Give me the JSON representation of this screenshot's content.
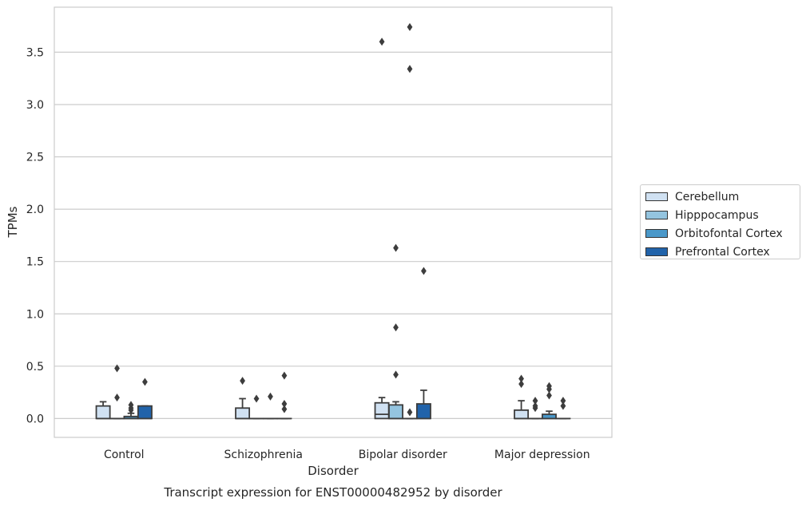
{
  "chart_data": {
    "type": "box",
    "caption": "Transcript expression for ENST00000482952 by disorder",
    "xlabel": "Disorder",
    "ylabel": "TPMs",
    "ylim": [
      -0.18,
      3.93
    ],
    "yticks": [
      0.0,
      0.5,
      1.0,
      1.5,
      2.0,
      2.5,
      3.0,
      3.5
    ],
    "ytick_labels": [
      "0.0",
      "0.5",
      "1.0",
      "1.5",
      "2.0",
      "2.5",
      "3.0",
      "3.5"
    ],
    "grid": "horizontal",
    "legend_position": "right",
    "categories": [
      "Control",
      "Schizophrenia",
      "Bipolar disorder",
      "Major depression"
    ],
    "series": [
      {
        "name": "Cerebellum",
        "color": "#d0e1f2",
        "boxes": [
          {
            "q1": 0.0,
            "median": 0.0,
            "q3": 0.12,
            "whisker_low": 0.0,
            "whisker_high": 0.16,
            "outliers": []
          },
          {
            "q1": 0.0,
            "median": 0.0,
            "q3": 0.1,
            "whisker_low": 0.0,
            "whisker_high": 0.19,
            "outliers": [
              0.36
            ]
          },
          {
            "q1": 0.0,
            "median": 0.04,
            "q3": 0.15,
            "whisker_low": 0.0,
            "whisker_high": 0.2,
            "outliers": [
              3.6
            ]
          },
          {
            "q1": 0.0,
            "median": 0.0,
            "q3": 0.08,
            "whisker_low": 0.0,
            "whisker_high": 0.17,
            "outliers": [
              0.33,
              0.38
            ]
          }
        ]
      },
      {
        "name": "Hipppocampus",
        "color": "#94c4df",
        "boxes": [
          {
            "q1": 0.0,
            "median": 0.0,
            "q3": 0.0,
            "whisker_low": 0.0,
            "whisker_high": 0.0,
            "outliers": [
              0.2,
              0.48
            ]
          },
          {
            "q1": 0.0,
            "median": 0.0,
            "q3": 0.0,
            "whisker_low": 0.0,
            "whisker_high": 0.0,
            "outliers": [
              0.19
            ]
          },
          {
            "q1": 0.0,
            "median": 0.0,
            "q3": 0.13,
            "whisker_low": 0.0,
            "whisker_high": 0.16,
            "outliers": [
              0.42,
              0.87,
              1.63
            ]
          },
          {
            "q1": 0.0,
            "median": 0.0,
            "q3": 0.0,
            "whisker_low": 0.0,
            "whisker_high": 0.0,
            "outliers": [
              0.1,
              0.12,
              0.17
            ]
          }
        ]
      },
      {
        "name": "Orbitofontal Cortex",
        "color": "#4a98c9",
        "boxes": [
          {
            "q1": 0.0,
            "median": 0.0,
            "q3": 0.02,
            "whisker_low": 0.0,
            "whisker_high": 0.05,
            "outliers": [
              0.08,
              0.1,
              0.13
            ]
          },
          {
            "q1": 0.0,
            "median": 0.0,
            "q3": 0.0,
            "whisker_low": 0.0,
            "whisker_high": 0.0,
            "outliers": [
              0.21
            ]
          },
          {
            "q1": 0.0,
            "median": 0.0,
            "q3": 0.0,
            "whisker_low": 0.0,
            "whisker_high": 0.0,
            "outliers": [
              0.06,
              3.34,
              3.74
            ]
          },
          {
            "q1": 0.0,
            "median": 0.0,
            "q3": 0.04,
            "whisker_low": 0.0,
            "whisker_high": 0.07,
            "outliers": [
              0.22,
              0.28,
              0.31
            ]
          }
        ]
      },
      {
        "name": "Prefrontal Cortex",
        "color": "#2163aa",
        "boxes": [
          {
            "q1": 0.0,
            "median": 0.0,
            "q3": 0.12,
            "whisker_low": 0.0,
            "whisker_high": 0.12,
            "outliers": [
              0.35
            ]
          },
          {
            "q1": 0.0,
            "median": 0.0,
            "q3": 0.0,
            "whisker_low": 0.0,
            "whisker_high": 0.0,
            "outliers": [
              0.09,
              0.14,
              0.41
            ]
          },
          {
            "q1": 0.0,
            "median": 0.0,
            "q3": 0.14,
            "whisker_low": 0.0,
            "whisker_high": 0.27,
            "outliers": [
              1.41
            ]
          },
          {
            "q1": 0.0,
            "median": 0.0,
            "q3": 0.0,
            "whisker_low": 0.0,
            "whisker_high": 0.0,
            "outliers": [
              0.12,
              0.17
            ]
          }
        ]
      }
    ]
  }
}
